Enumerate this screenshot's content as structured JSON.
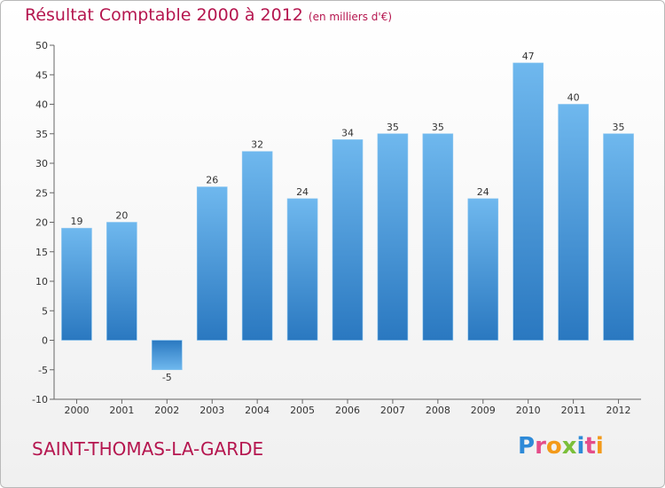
{
  "chart_data": {
    "type": "bar",
    "title": "Résultat Comptable 2000 à 2012",
    "subtitle": "(en milliers d'€)",
    "categories": [
      "2000",
      "2001",
      "2002",
      "2003",
      "2004",
      "2005",
      "2006",
      "2007",
      "2008",
      "2009",
      "2010",
      "2011",
      "2012"
    ],
    "values": [
      19,
      20,
      -5,
      26,
      32,
      24,
      34,
      35,
      35,
      24,
      47,
      40,
      35
    ],
    "yticks": [
      -10,
      -5,
      0,
      5,
      10,
      15,
      20,
      25,
      30,
      35,
      40,
      45,
      50
    ],
    "ylim": [
      -10,
      50
    ],
    "grid": false,
    "xlabel": "",
    "ylabel": ""
  },
  "commune": "SAINT-THOMAS-LA-GARDE",
  "logo": {
    "text": "Proxiti",
    "letters": [
      "P",
      "r",
      "o",
      "x",
      "i",
      "t",
      "i"
    ]
  },
  "colors": {
    "accent": "#b5164f",
    "bar_top": "#6fb8ee",
    "bar_bottom": "#2a78c0",
    "axis": "#666666"
  }
}
